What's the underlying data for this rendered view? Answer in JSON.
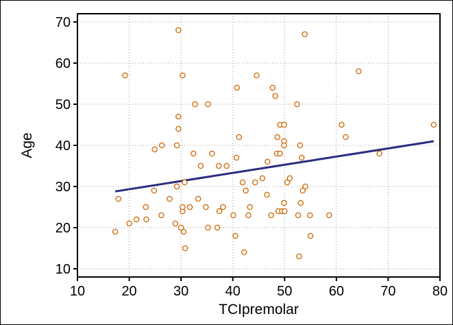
{
  "chart_data": {
    "type": "scatter",
    "title": "",
    "xlabel": "TCIpremolar",
    "ylabel": "Age",
    "xlim": [
      10,
      80
    ],
    "ylim": [
      8,
      72
    ],
    "xticks": [
      10,
      20,
      30,
      40,
      50,
      60,
      70,
      80
    ],
    "yticks": [
      10,
      20,
      30,
      40,
      50,
      60,
      70
    ],
    "grid": true,
    "legend": "none",
    "colors": {
      "marker": "#cc6600",
      "regression_line": "#2b2b80",
      "grid": "#9a9a9a",
      "axis": "#000000"
    },
    "points": [
      {
        "x": 17.3,
        "y": 19
      },
      {
        "x": 17.9,
        "y": 27
      },
      {
        "x": 19.2,
        "y": 57
      },
      {
        "x": 20,
        "y": 21
      },
      {
        "x": 21.4,
        "y": 22
      },
      {
        "x": 23.2,
        "y": 25
      },
      {
        "x": 23.3,
        "y": 22
      },
      {
        "x": 24.8,
        "y": 29
      },
      {
        "x": 24.9,
        "y": 39
      },
      {
        "x": 26.2,
        "y": 23
      },
      {
        "x": 26.3,
        "y": 40
      },
      {
        "x": 27.8,
        "y": 27
      },
      {
        "x": 28.9,
        "y": 21
      },
      {
        "x": 29.2,
        "y": 30
      },
      {
        "x": 29.2,
        "y": 40
      },
      {
        "x": 29.5,
        "y": 68
      },
      {
        "x": 29.5,
        "y": 47
      },
      {
        "x": 29.5,
        "y": 44
      },
      {
        "x": 30,
        "y": 20
      },
      {
        "x": 30.3,
        "y": 24
      },
      {
        "x": 30.3,
        "y": 25
      },
      {
        "x": 30.3,
        "y": 57
      },
      {
        "x": 30.5,
        "y": 19
      },
      {
        "x": 30.7,
        "y": 31
      },
      {
        "x": 30.8,
        "y": 15
      },
      {
        "x": 31.7,
        "y": 25
      },
      {
        "x": 32.4,
        "y": 38
      },
      {
        "x": 32.7,
        "y": 50
      },
      {
        "x": 33.3,
        "y": 27
      },
      {
        "x": 33.8,
        "y": 35
      },
      {
        "x": 34.8,
        "y": 25
      },
      {
        "x": 35.2,
        "y": 20
      },
      {
        "x": 35.2,
        "y": 50
      },
      {
        "x": 36,
        "y": 38
      },
      {
        "x": 37,
        "y": 20
      },
      {
        "x": 37.3,
        "y": 35
      },
      {
        "x": 37.4,
        "y": 24
      },
      {
        "x": 38.1,
        "y": 25
      },
      {
        "x": 38.8,
        "y": 35
      },
      {
        "x": 40.1,
        "y": 23
      },
      {
        "x": 40.5,
        "y": 18
      },
      {
        "x": 40.7,
        "y": 37
      },
      {
        "x": 40.8,
        "y": 54
      },
      {
        "x": 41.2,
        "y": 42
      },
      {
        "x": 41.9,
        "y": 31
      },
      {
        "x": 42.2,
        "y": 14
      },
      {
        "x": 42.5,
        "y": 29
      },
      {
        "x": 43,
        "y": 23
      },
      {
        "x": 43.3,
        "y": 25
      },
      {
        "x": 44.3,
        "y": 31
      },
      {
        "x": 44.6,
        "y": 57
      },
      {
        "x": 45.7,
        "y": 32
      },
      {
        "x": 46.6,
        "y": 28
      },
      {
        "x": 46.7,
        "y": 36
      },
      {
        "x": 47.4,
        "y": 23
      },
      {
        "x": 47.7,
        "y": 54
      },
      {
        "x": 48.2,
        "y": 52
      },
      {
        "x": 48.5,
        "y": 38
      },
      {
        "x": 48.6,
        "y": 42
      },
      {
        "x": 48.8,
        "y": 24
      },
      {
        "x": 49.1,
        "y": 38
      },
      {
        "x": 49.1,
        "y": 45
      },
      {
        "x": 49.5,
        "y": 24
      },
      {
        "x": 49.9,
        "y": 45
      },
      {
        "x": 49.9,
        "y": 41
      },
      {
        "x": 49.9,
        "y": 40
      },
      {
        "x": 49.9,
        "y": 26
      },
      {
        "x": 50,
        "y": 24
      },
      {
        "x": 50.5,
        "y": 31
      },
      {
        "x": 51,
        "y": 32
      },
      {
        "x": 52.4,
        "y": 50
      },
      {
        "x": 52.6,
        "y": 23
      },
      {
        "x": 52.8,
        "y": 13
      },
      {
        "x": 53,
        "y": 40
      },
      {
        "x": 53.1,
        "y": 26
      },
      {
        "x": 53.3,
        "y": 37
      },
      {
        "x": 53.5,
        "y": 29
      },
      {
        "x": 53.9,
        "y": 67
      },
      {
        "x": 54,
        "y": 30
      },
      {
        "x": 54.9,
        "y": 23
      },
      {
        "x": 55,
        "y": 18
      },
      {
        "x": 58.6,
        "y": 23
      },
      {
        "x": 61,
        "y": 45
      },
      {
        "x": 61.8,
        "y": 42
      },
      {
        "x": 64.3,
        "y": 58
      },
      {
        "x": 68.3,
        "y": 38
      },
      {
        "x": 78.8,
        "y": 45
      }
    ],
    "regression_line": {
      "x1": 17.3,
      "y1": 28.8,
      "x2": 78.8,
      "y2": 41
    }
  }
}
